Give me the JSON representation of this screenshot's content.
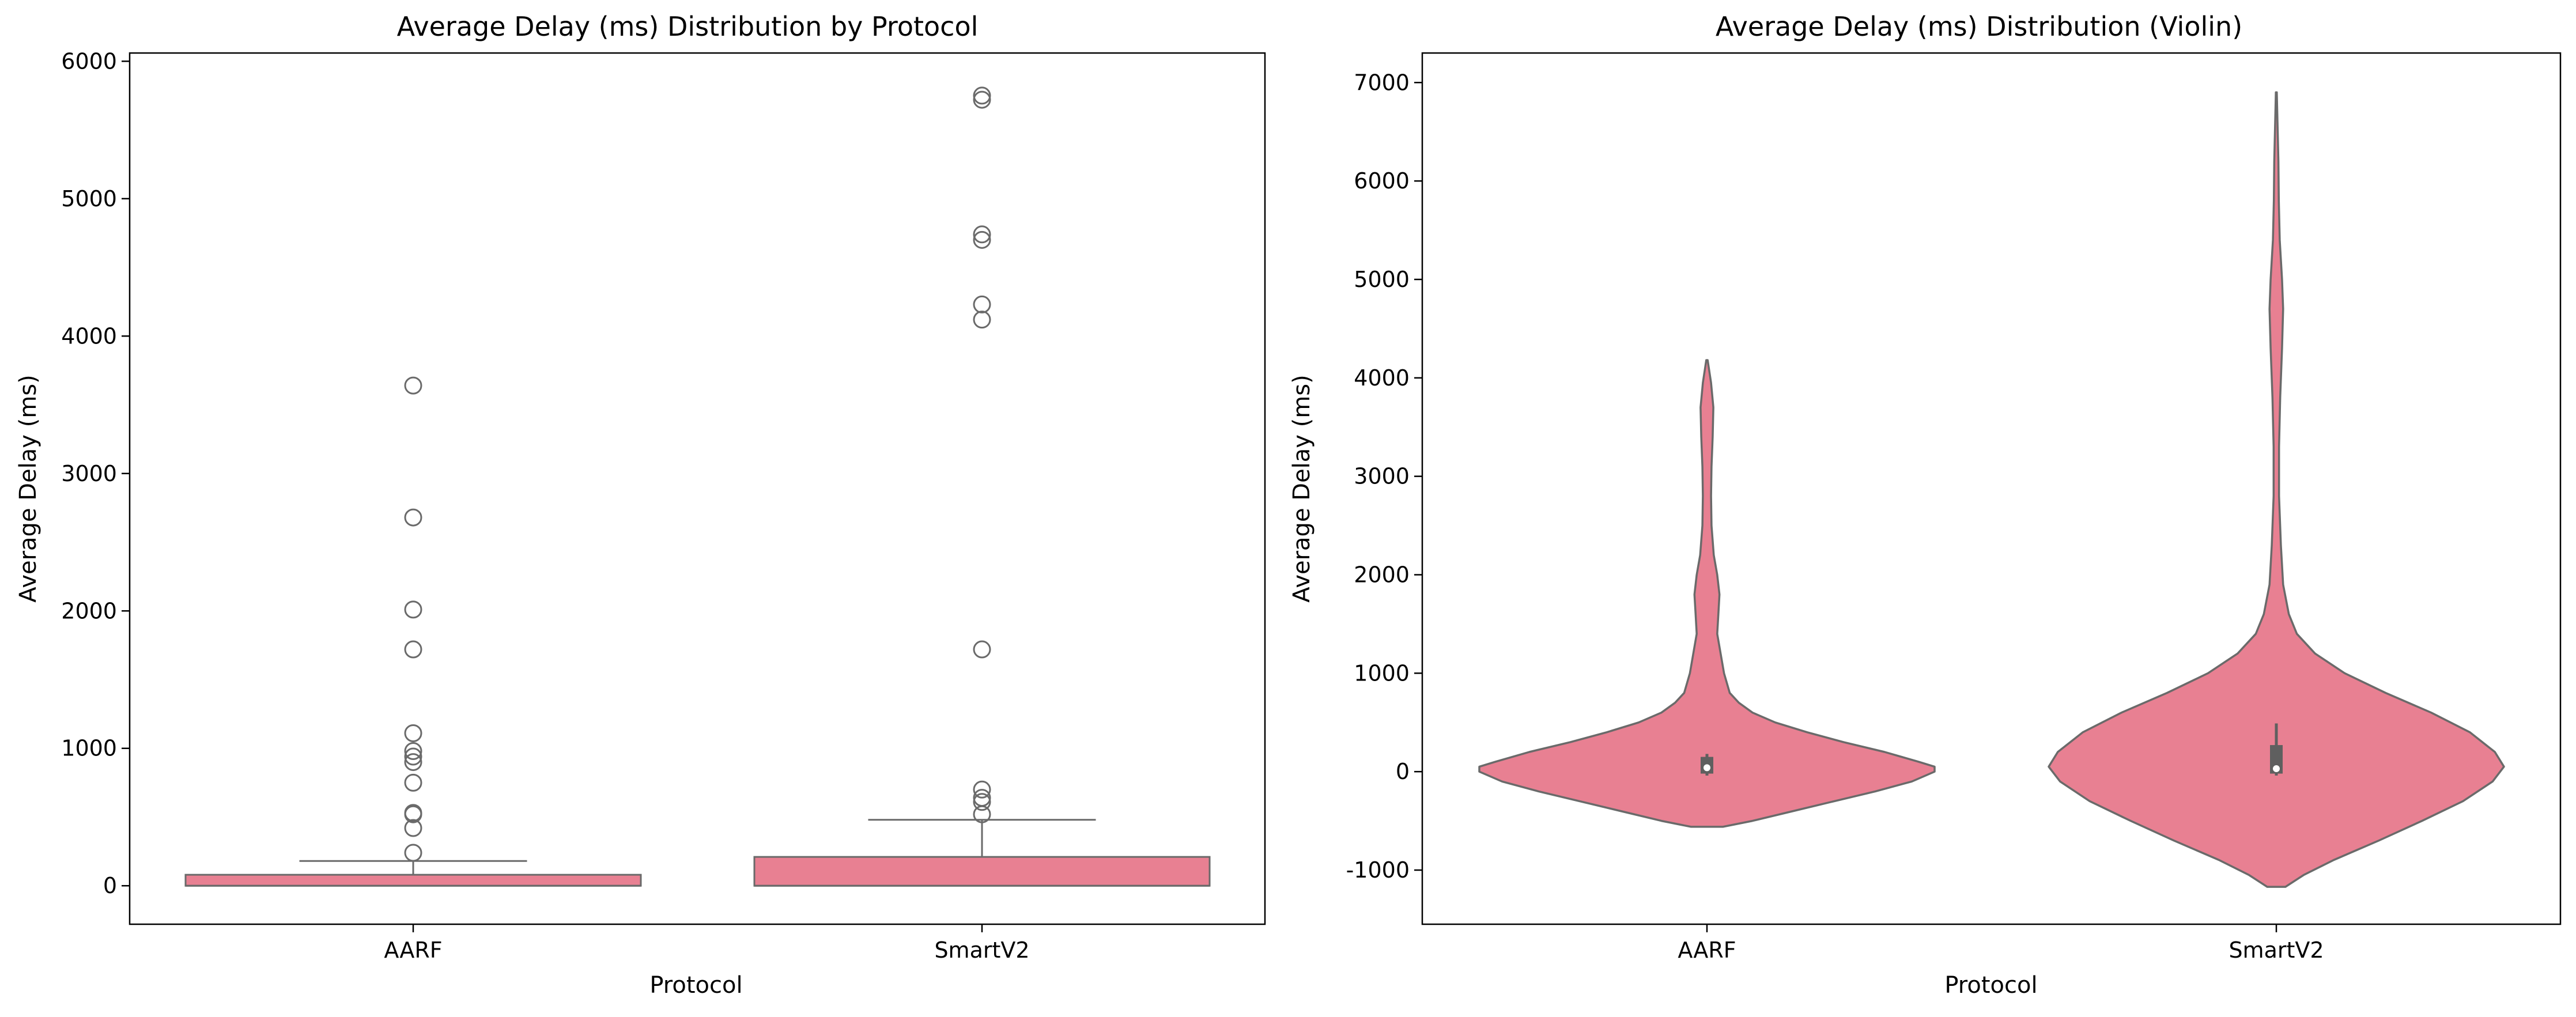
{
  "colors": {
    "fill": "#e88092",
    "stroke": "#6a6a6a",
    "axis": "#000000",
    "inner": "#5f5f5f"
  },
  "chart_data": [
    {
      "type": "box",
      "title": "Average Delay (ms) Distribution by Protocol",
      "xlabel": "Protocol",
      "ylabel": "Average Delay (ms)",
      "categories": [
        "AARF",
        "SmartV2"
      ],
      "ylim": [
        -280,
        6060
      ],
      "yticks": [
        0,
        1000,
        2000,
        3000,
        4000,
        5000,
        6000
      ],
      "boxes": [
        {
          "name": "AARF",
          "min": 0,
          "q1": 0,
          "median": 0,
          "q3": 80,
          "whisker_high": 180,
          "outliers": [
            240,
            420,
            520,
            530,
            750,
            900,
            940,
            980,
            1110,
            1720,
            2010,
            2680,
            3640
          ]
        },
        {
          "name": "SmartV2",
          "min": 0,
          "q1": 0,
          "median": 0,
          "q3": 210,
          "whisker_high": 480,
          "outliers": [
            520,
            610,
            640,
            700,
            1720,
            4120,
            4230,
            4700,
            4740,
            5720,
            5750
          ]
        }
      ]
    },
    {
      "type": "violin",
      "title": "Average Delay (ms) Distribution (Violin)",
      "xlabel": "Protocol",
      "ylabel": "Average Delay (ms)",
      "categories": [
        "AARF",
        "SmartV2"
      ],
      "ylim": [
        -1550,
        7300
      ],
      "yticks": [
        -1000,
        0,
        1000,
        2000,
        3000,
        4000,
        5000,
        6000,
        7000
      ],
      "violins": [
        {
          "name": "AARF",
          "q1": -20,
          "median": 40,
          "q3": 150,
          "whisker_low": -40,
          "whisker_high": 180,
          "density": [
            [
              -560,
              0.07
            ],
            [
              -500,
              0.2
            ],
            [
              -400,
              0.38
            ],
            [
              -300,
              0.56
            ],
            [
              -200,
              0.74
            ],
            [
              -100,
              0.9
            ],
            [
              0,
              1.0
            ],
            [
              50,
              1.0
            ],
            [
              100,
              0.93
            ],
            [
              200,
              0.78
            ],
            [
              300,
              0.6
            ],
            [
              400,
              0.44
            ],
            [
              500,
              0.3
            ],
            [
              600,
              0.2
            ],
            [
              700,
              0.14
            ],
            [
              800,
              0.1
            ],
            [
              1000,
              0.075
            ],
            [
              1200,
              0.06
            ],
            [
              1400,
              0.045
            ],
            [
              1600,
              0.05
            ],
            [
              1800,
              0.055
            ],
            [
              2000,
              0.045
            ],
            [
              2200,
              0.03
            ],
            [
              2500,
              0.02
            ],
            [
              2800,
              0.018
            ],
            [
              3100,
              0.02
            ],
            [
              3400,
              0.025
            ],
            [
              3700,
              0.028
            ],
            [
              3950,
              0.018
            ],
            [
              4180,
              0.003
            ]
          ]
        },
        {
          "name": "SmartV2",
          "q1": -20,
          "median": 30,
          "q3": 270,
          "whisker_low": -40,
          "whisker_high": 490,
          "density": [
            [
              -1170,
              0.04
            ],
            [
              -1050,
              0.12
            ],
            [
              -900,
              0.25
            ],
            [
              -700,
              0.45
            ],
            [
              -500,
              0.64
            ],
            [
              -300,
              0.82
            ],
            [
              -100,
              0.95
            ],
            [
              50,
              1.0
            ],
            [
              200,
              0.96
            ],
            [
              400,
              0.85
            ],
            [
              600,
              0.68
            ],
            [
              800,
              0.48
            ],
            [
              1000,
              0.3
            ],
            [
              1200,
              0.17
            ],
            [
              1400,
              0.09
            ],
            [
              1600,
              0.055
            ],
            [
              1900,
              0.03
            ],
            [
              2300,
              0.02
            ],
            [
              2800,
              0.012
            ],
            [
              3300,
              0.012
            ],
            [
              3800,
              0.017
            ],
            [
              4300,
              0.025
            ],
            [
              4700,
              0.03
            ],
            [
              5000,
              0.025
            ],
            [
              5400,
              0.015
            ],
            [
              5800,
              0.011
            ],
            [
              6200,
              0.009
            ],
            [
              6600,
              0.005
            ],
            [
              6900,
              0.002
            ]
          ]
        }
      ]
    }
  ]
}
